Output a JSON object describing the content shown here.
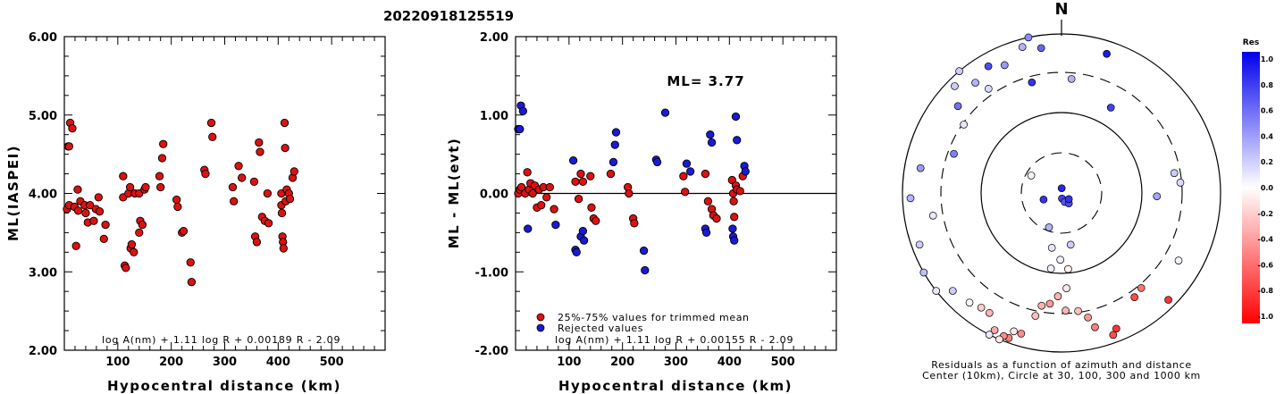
{
  "title": "20220918125519",
  "colors": {
    "used": "#dd1111",
    "rejected": "#1a1ad6",
    "axis": "#000000"
  },
  "formula_note": "Formula text printed inside each panel",
  "charts": [
    {
      "type": "scatter",
      "ylabel": "ML(IASPEI)",
      "xlabel": "Hypocentral distance (km)",
      "xlim": [
        0,
        600
      ],
      "ylim": [
        2.0,
        6.0
      ],
      "xticks": [
        "100",
        "200",
        "300",
        "400",
        "500"
      ],
      "yticks": [
        "2.00",
        "3.00",
        "4.00",
        "5.00",
        "6.00"
      ],
      "formula": "log A(nm) + 1.11 log R + 0.00189 R - 2.09",
      "points": [
        [
          5,
          3.8
        ],
        [
          7,
          4.6
        ],
        [
          9,
          4.6
        ],
        [
          9,
          3.85
        ],
        [
          11,
          4.9
        ],
        [
          15,
          4.83
        ],
        [
          19,
          3.83
        ],
        [
          22,
          3.33
        ],
        [
          25,
          4.05
        ],
        [
          26,
          3.78
        ],
        [
          30,
          3.9
        ],
        [
          38,
          3.85
        ],
        [
          40,
          3.75
        ],
        [
          44,
          3.63
        ],
        [
          48,
          3.85
        ],
        [
          55,
          3.65
        ],
        [
          59,
          3.8
        ],
        [
          64,
          3.95
        ],
        [
          66,
          3.77
        ],
        [
          74,
          3.42
        ],
        [
          77,
          3.6
        ],
        [
          110,
          4.22
        ],
        [
          110,
          3.95
        ],
        [
          113,
          3.08
        ],
        [
          115,
          3.05
        ],
        [
          120,
          4.0
        ],
        [
          123,
          4.08
        ],
        [
          124,
          3.3
        ],
        [
          126,
          3.35
        ],
        [
          130,
          3.25
        ],
        [
          132,
          4.0
        ],
        [
          140,
          4.0
        ],
        [
          140,
          3.5
        ],
        [
          142,
          3.65
        ],
        [
          146,
          3.6
        ],
        [
          150,
          4.05
        ],
        [
          152,
          4.08
        ],
        [
          178,
          4.22
        ],
        [
          180,
          4.08
        ],
        [
          183,
          4.45
        ],
        [
          185,
          4.63
        ],
        [
          210,
          3.92
        ],
        [
          212,
          3.83
        ],
        [
          220,
          3.5
        ],
        [
          223,
          3.52
        ],
        [
          236,
          3.12
        ],
        [
          238,
          2.87
        ],
        [
          262,
          4.3
        ],
        [
          264,
          4.25
        ],
        [
          275,
          4.9
        ],
        [
          277,
          4.72
        ],
        [
          315,
          4.08
        ],
        [
          317,
          3.9
        ],
        [
          326,
          4.35
        ],
        [
          332,
          4.2
        ],
        [
          355,
          4.15
        ],
        [
          357,
          3.45
        ],
        [
          360,
          3.38
        ],
        [
          364,
          4.65
        ],
        [
          366,
          4.53
        ],
        [
          370,
          3.7
        ],
        [
          375,
          3.65
        ],
        [
          380,
          4.0
        ],
        [
          382,
          3.62
        ],
        [
          406,
          4.0
        ],
        [
          406,
          3.85
        ],
        [
          407,
          3.75
        ],
        [
          408,
          3.45
        ],
        [
          409,
          3.38
        ],
        [
          410,
          3.3
        ],
        [
          412,
          4.9
        ],
        [
          413,
          4.58
        ],
        [
          414,
          3.9
        ],
        [
          416,
          4.05
        ],
        [
          420,
          4.0
        ],
        [
          422,
          3.93
        ],
        [
          427,
          4.2
        ],
        [
          430,
          4.28
        ]
      ]
    },
    {
      "type": "scatter",
      "ylabel": "ML - ML(evt)",
      "xlabel": "Hypocentral distance (km)",
      "xlim": [
        0,
        600
      ],
      "ylim": [
        -2.0,
        2.0
      ],
      "xticks": [
        "100",
        "200",
        "300",
        "400",
        "500"
      ],
      "yticks": [
        "-2.00",
        "-1.00",
        "0.00",
        "1.00",
        "2.00"
      ],
      "ml_label": "ML= 3.77",
      "formula": "log A(nm) + 1.11 log R + 0.00155 R - 2.09",
      "legend": [
        "25%-75% values for trimmed mean",
        "Rejected values"
      ],
      "zero_line": 0.0,
      "points_used": [
        [
          5,
          0.0
        ],
        [
          8,
          0.05
        ],
        [
          11,
          0.08
        ],
        [
          18,
          0.0
        ],
        [
          22,
          0.27
        ],
        [
          25,
          0.05
        ],
        [
          28,
          0.13
        ],
        [
          32,
          0.0
        ],
        [
          36,
          0.1
        ],
        [
          40,
          -0.18
        ],
        [
          44,
          0.05
        ],
        [
          48,
          -0.15
        ],
        [
          52,
          0.08
        ],
        [
          58,
          -0.05
        ],
        [
          64,
          0.08
        ],
        [
          72,
          -0.2
        ],
        [
          112,
          0.15
        ],
        [
          118,
          -0.07
        ],
        [
          122,
          0.25
        ],
        [
          126,
          0.15
        ],
        [
          140,
          0.22
        ],
        [
          142,
          -0.18
        ],
        [
          146,
          -0.32
        ],
        [
          150,
          -0.35
        ],
        [
          178,
          0.25
        ],
        [
          210,
          0.08
        ],
        [
          212,
          0.0
        ],
        [
          220,
          -0.32
        ],
        [
          222,
          -0.38
        ],
        [
          314,
          0.22
        ],
        [
          317,
          0.02
        ],
        [
          355,
          0.25
        ],
        [
          360,
          -0.1
        ],
        [
          367,
          -0.2
        ],
        [
          370,
          -0.28
        ],
        [
          376,
          -0.32
        ],
        [
          405,
          0.17
        ],
        [
          407,
          0.0
        ],
        [
          408,
          -0.1
        ],
        [
          409,
          -0.3
        ],
        [
          412,
          0.1
        ],
        [
          414,
          0.05
        ],
        [
          420,
          0.03
        ],
        [
          425,
          0.22
        ]
      ],
      "points_rejected": [
        [
          5,
          0.82
        ],
        [
          8,
          0.82
        ],
        [
          10,
          1.12
        ],
        [
          14,
          1.05
        ],
        [
          23,
          -0.45
        ],
        [
          75,
          -0.4
        ],
        [
          108,
          0.42
        ],
        [
          112,
          -0.72
        ],
        [
          114,
          -0.75
        ],
        [
          122,
          -0.55
        ],
        [
          126,
          -0.48
        ],
        [
          128,
          -0.6
        ],
        [
          183,
          0.4
        ],
        [
          186,
          0.62
        ],
        [
          188,
          0.78
        ],
        [
          240,
          -0.73
        ],
        [
          242,
          -0.98
        ],
        [
          263,
          0.43
        ],
        [
          265,
          0.4
        ],
        [
          280,
          1.03
        ],
        [
          320,
          0.38
        ],
        [
          327,
          0.28
        ],
        [
          355,
          -0.45
        ],
        [
          357,
          -0.5
        ],
        [
          364,
          0.75
        ],
        [
          367,
          0.65
        ],
        [
          406,
          -0.45
        ],
        [
          407,
          -0.55
        ],
        [
          409,
          -0.6
        ],
        [
          412,
          0.98
        ],
        [
          414,
          0.68
        ],
        [
          428,
          0.35
        ],
        [
          430,
          0.28
        ]
      ]
    },
    {
      "type": "scatter",
      "subtype": "polar",
      "north_label": "N",
      "caption": [
        "Residuals as a function of azimuth and distance",
        "Center (10km), Circle at 30, 100, 300 and 1000 km"
      ],
      "colorbar": {
        "title": "Res",
        "range": [
          -1.0,
          1.0
        ],
        "ticks": [
          "1.0",
          "0.8",
          "0.6",
          "0.4",
          "0.2",
          "0.0",
          "-0.2",
          "-0.4",
          "-0.6",
          "-0.8",
          "-1.0"
        ]
      },
      "stations": [
        [
          2,
          0.03,
          0.85
        ],
        [
          175,
          0.035,
          0.75
        ],
        [
          160,
          0.06,
          0.65
        ],
        [
          145,
          0.08,
          0.7
        ],
        [
          130,
          0.06,
          0.8
        ],
        [
          250,
          0.12,
          0.8
        ],
        [
          300,
          0.22,
          0.05
        ],
        [
          200,
          0.23,
          0.3
        ],
        [
          170,
          0.33,
          0.2
        ],
        [
          190,
          0.35,
          0.1
        ],
        [
          181,
          0.42,
          0.05
        ],
        [
          175,
          0.48,
          -0.05
        ],
        [
          188,
          0.48,
          0.05
        ],
        [
          177,
          0.6,
          -0.1
        ],
        [
          182,
          0.65,
          -0.3
        ],
        [
          186,
          0.7,
          -0.4
        ],
        [
          178,
          0.74,
          -0.3
        ],
        [
          172,
          0.75,
          -0.25
        ],
        [
          190,
          0.72,
          -0.3
        ],
        [
          168,
          0.8,
          -0.4
        ],
        [
          192,
          0.79,
          -0.25
        ],
        [
          166,
          0.87,
          -0.5
        ],
        [
          158,
          0.92,
          -0.8
        ],
        [
          160,
          0.95,
          -0.7
        ],
        [
          196,
          0.92,
          -0.45
        ],
        [
          200,
          0.97,
          -0.5
        ],
        [
          202,
          0.97,
          -0.45
        ],
        [
          206,
          0.96,
          -0.35
        ],
        [
          203,
          1.0,
          -0.1
        ],
        [
          207,
          1.0,
          0.08
        ],
        [
          199,
          0.92,
          -0.1
        ],
        [
          211,
          0.88,
          -0.3
        ],
        [
          215,
          0.88,
          -0.2
        ],
        [
          220,
          0.9,
          0.0
        ],
        [
          228,
          0.92,
          0.2
        ],
        [
          232,
          1.0,
          0.1
        ],
        [
          240,
          1.0,
          0.25
        ],
        [
          250,
          0.95,
          0.2
        ],
        [
          260,
          0.82,
          0.1
        ],
        [
          268,
          0.95,
          0.3
        ],
        [
          280,
          0.9,
          0.4
        ],
        [
          290,
          0.72,
          0.5
        ],
        [
          305,
          0.75,
          0.1
        ],
        [
          310,
          0.85,
          0.55
        ],
        [
          315,
          0.95,
          0.2
        ],
        [
          320,
          1.0,
          0.2
        ],
        [
          322,
          0.88,
          0.3
        ],
        [
          330,
          0.92,
          0.7
        ],
        [
          336,
          0.88,
          0.4
        ],
        [
          345,
          0.72,
          0.8
        ],
        [
          352,
          0.92,
          0.6
        ],
        [
          5,
          0.72,
          0.3
        ],
        [
          18,
          0.92,
          0.9
        ],
        [
          30,
          0.62,
          0.75
        ],
        [
          80,
          0.72,
          0.2
        ],
        [
          85,
          0.75,
          0.15
        ],
        [
          92,
          0.6,
          0.35
        ],
        [
          120,
          0.85,
          0.05
        ],
        [
          140,
          0.78,
          -0.55
        ],
        [
          145,
          0.8,
          -0.7
        ],
        [
          135,
          0.95,
          -0.8
        ],
        [
          345,
          0.95,
          0.3
        ],
        [
          348,
          1.0,
          0.45
        ],
        [
          325,
          0.8,
          0.15
        ]
      ]
    }
  ]
}
